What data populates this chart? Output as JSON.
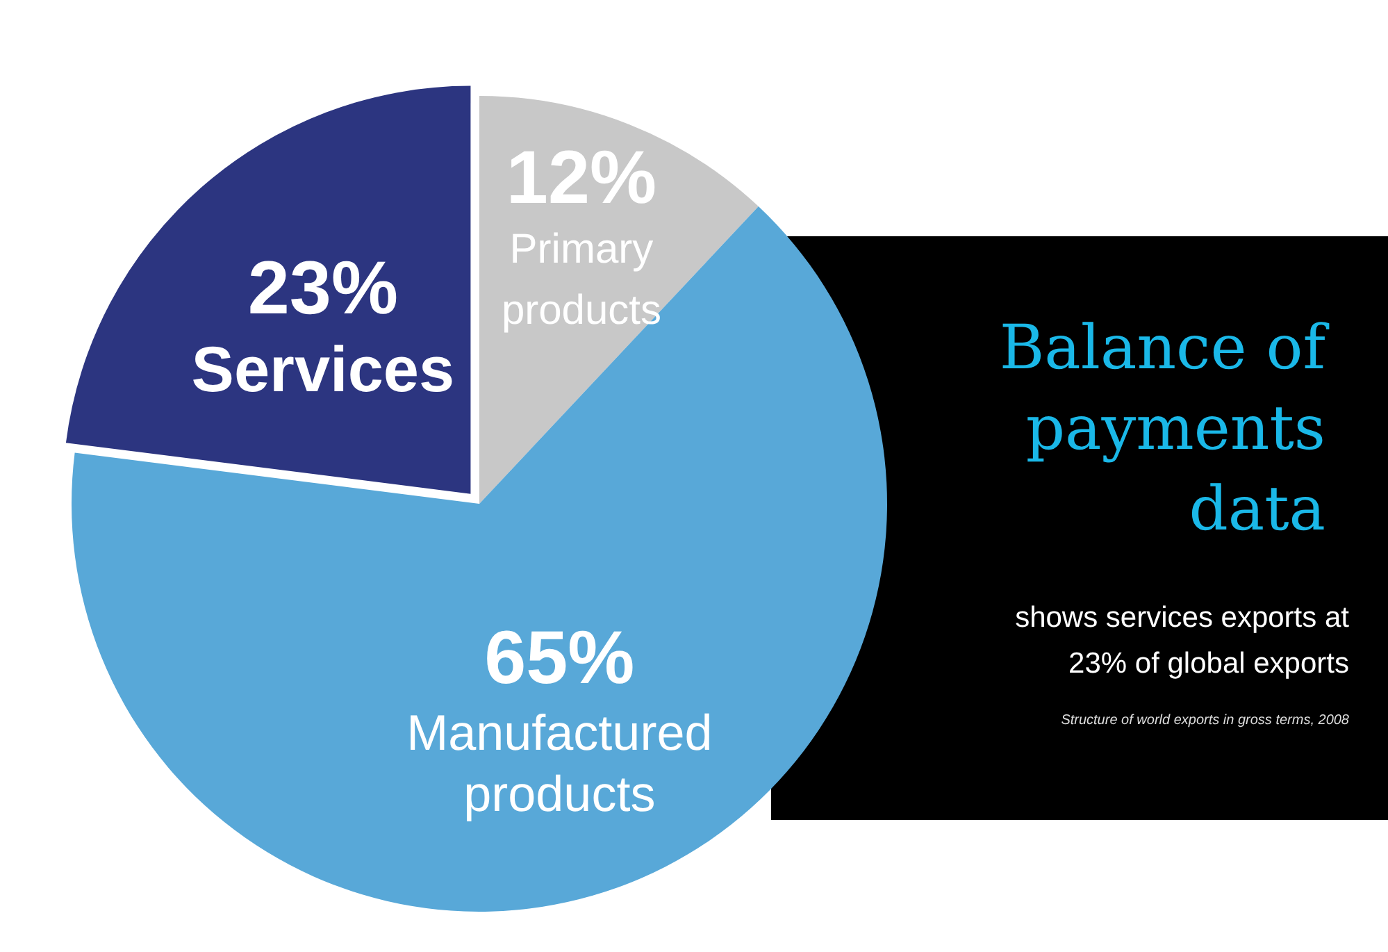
{
  "chart_data": {
    "type": "pie",
    "title": "Balance of payments data",
    "subtitle": "shows services exports at 23% of global exports",
    "annotations": [
      "Structure of world exports in gross terms, 2008"
    ],
    "categories": [
      "Primary products",
      "Manufactured products",
      "Services"
    ],
    "values": [
      12,
      65,
      23
    ],
    "value_labels": [
      "12%",
      "65%",
      "23%"
    ],
    "colors": [
      "#c8c8c8",
      "#58a8d8",
      "#2c3580"
    ],
    "legend": false
  }
}
